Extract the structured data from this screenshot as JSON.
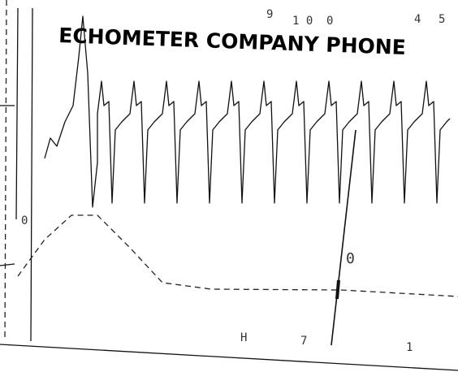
{
  "header": {
    "title": "ECHOMETER COMPANY PHONE"
  },
  "scale_marks": [
    "9",
    "1 0",
    "0",
    "4",
    "5"
  ],
  "side_mark": "0",
  "marker_label": "0",
  "bottom_marks": [
    "H",
    "7",
    "1"
  ]
}
